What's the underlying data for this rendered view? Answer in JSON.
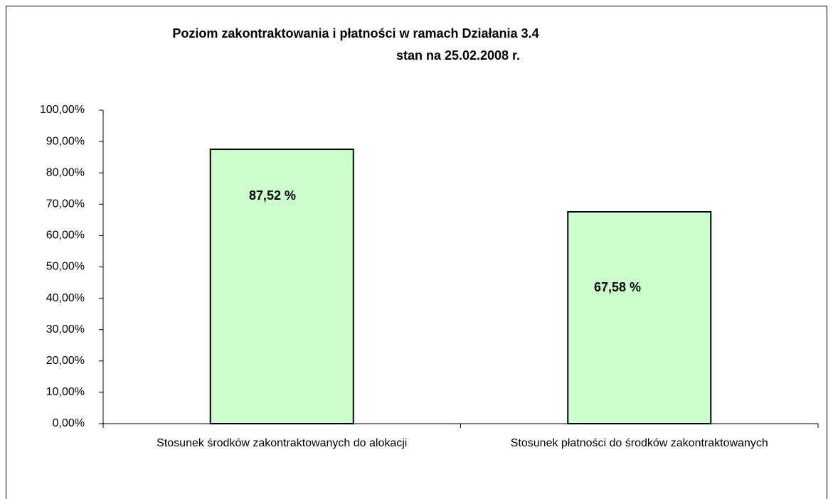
{
  "chart_data": {
    "type": "bar",
    "title": "Poziom zakontraktowania i płatności w ramach Działania 3.4",
    "subtitle": "stan na 25.02.2008 r.",
    "categories": [
      "Stosunek środków zakontraktowanych do alokacji",
      "Stosunek płatności do środków zakontraktowanych"
    ],
    "values": [
      87.52,
      67.58
    ],
    "value_labels": [
      "87,52 %",
      "67,58 %"
    ],
    "color": "#ccffcc",
    "ylim": [
      0,
      100
    ],
    "yticks": [
      {
        "value": 0,
        "label": "0,00%"
      },
      {
        "value": 10,
        "label": "10,00%"
      },
      {
        "value": 20,
        "label": "20,00%"
      },
      {
        "value": 30,
        "label": "30,00%"
      },
      {
        "value": 40,
        "label": "40,00%"
      },
      {
        "value": 50,
        "label": "50,00%"
      },
      {
        "value": 60,
        "label": "60,00%"
      },
      {
        "value": 70,
        "label": "70,00%"
      },
      {
        "value": 80,
        "label": "80,00%"
      },
      {
        "value": 90,
        "label": "90,00%"
      },
      {
        "value": 100,
        "label": "100,00%"
      }
    ],
    "grid": false
  }
}
